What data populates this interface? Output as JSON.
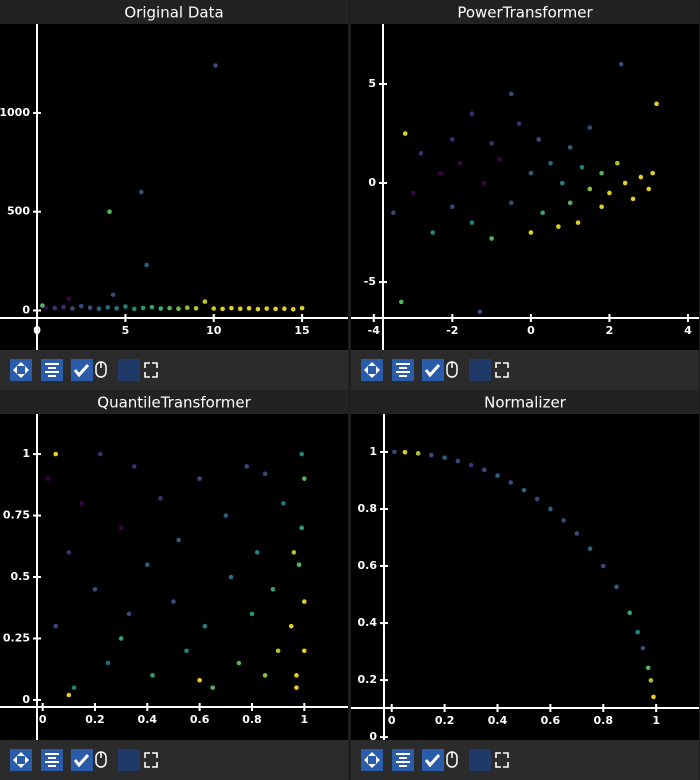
{
  "chart_data": [
    {
      "type": "scatter",
      "title": "Original Data",
      "x": [
        0.5,
        1,
        1.5,
        2,
        2.5,
        3,
        3.5,
        4,
        4.5,
        5,
        5.5,
        6,
        6.5,
        7,
        7.5,
        8,
        8.5,
        9,
        9.5,
        10,
        10.5,
        11,
        11.5,
        12,
        12.5,
        13,
        13.5,
        14,
        14.5,
        15,
        10.1,
        5.9,
        4.1,
        6.2,
        4.3,
        1.8,
        0.3
      ],
      "values": [
        15,
        12,
        18,
        10,
        22,
        14,
        9,
        16,
        11,
        20,
        8,
        13,
        17,
        10,
        12,
        9,
        14,
        11,
        45,
        10,
        8,
        12,
        9,
        11,
        7,
        10,
        8,
        9,
        6,
        12,
        1240,
        600,
        500,
        230,
        80,
        60,
        25
      ],
      "colors": [
        "#440154",
        "#46327e",
        "#46327e",
        "#3b528b",
        "#3b528b",
        "#365c8d",
        "#31688e",
        "#2c728e",
        "#26828e",
        "#21918c",
        "#1f9e89",
        "#22a884",
        "#35b779",
        "#44bf70",
        "#5ec962",
        "#7ad151",
        "#95d840",
        "#b5de2b",
        "#d2e21b",
        "#dde318",
        "#fde725",
        "#fde725",
        "#fde725",
        "#fde725",
        "#fde725",
        "#fde725",
        "#fde725",
        "#fde725",
        "#fde725",
        "#fde725",
        "#3b528b",
        "#3b528b",
        "#5ec962",
        "#31688e",
        "#3b528b",
        "#440154",
        "#5ec962"
      ],
      "xlim": [
        -2.1,
        17.6
      ],
      "ylim": [
        -200,
        1450
      ],
      "xticks": [
        0,
        5,
        10,
        15
      ],
      "yticks": [
        0,
        500,
        1000
      ]
    },
    {
      "type": "scatter",
      "title": "PowerTransformer",
      "x": [
        -3.5,
        -3.2,
        -3,
        -2.8,
        -2.5,
        -2.3,
        -2,
        -2,
        -1.8,
        -1.5,
        -1.5,
        -1.2,
        -1,
        -1,
        -0.8,
        -0.5,
        -0.5,
        -0.3,
        0,
        0,
        0.2,
        0.3,
        0.5,
        0.7,
        0.8,
        1,
        1,
        1.2,
        1.3,
        1.5,
        1.5,
        1.8,
        1.8,
        2,
        2.2,
        2.4,
        2.6,
        2.8,
        3,
        3.1,
        3.2,
        -3.3,
        -1.3,
        2.3
      ],
      "values": [
        -1.5,
        2.5,
        -0.5,
        1.5,
        -2.5,
        0.5,
        2.2,
        -1.2,
        1,
        3.5,
        -2,
        0,
        2,
        -2.8,
        1.2,
        4.5,
        -1,
        3,
        0.5,
        -2.5,
        2.2,
        -1.5,
        1,
        -2.2,
        0,
        1.8,
        -1,
        -2,
        0.8,
        -0.3,
        2.8,
        -1.2,
        0.5,
        -0.5,
        1,
        0,
        -0.8,
        0.3,
        -0.3,
        0.5,
        4,
        -6,
        -6.5,
        6
      ],
      "colors": [
        "#3b528b",
        "#fde725",
        "#440154",
        "#46327e",
        "#21918c",
        "#440154",
        "#46327e",
        "#3b528b",
        "#440154",
        "#46327e",
        "#21918c",
        "#440154",
        "#46327e",
        "#5ec962",
        "#440154",
        "#3b528b",
        "#3b528b",
        "#46327e",
        "#31688e",
        "#fde725",
        "#3b528b",
        "#35b779",
        "#2c728e",
        "#fde725",
        "#21918c",
        "#31688e",
        "#5ec962",
        "#fde725",
        "#21918c",
        "#95d840",
        "#3b528b",
        "#fde725",
        "#5ec962",
        "#fde725",
        "#b5de2b",
        "#fde725",
        "#fde725",
        "#fde725",
        "#fde725",
        "#fde725",
        "#fde725",
        "#5ec962",
        "#3b528b",
        "#3b528b"
      ],
      "xlim": [
        -4.58,
        4.28
      ],
      "ylim": [
        -8.43,
        8.03
      ],
      "xticks": [
        -4,
        -2,
        0,
        2,
        4
      ],
      "yticks": [
        -5,
        0,
        5
      ]
    },
    {
      "type": "scatter",
      "title": "QuantileTransformer",
      "x": [
        0.02,
        0.05,
        0.1,
        0.12,
        0.15,
        0.2,
        0.22,
        0.25,
        0.3,
        0.33,
        0.35,
        0.4,
        0.42,
        0.45,
        0.5,
        0.52,
        0.55,
        0.6,
        0.62,
        0.65,
        0.7,
        0.72,
        0.75,
        0.78,
        0.8,
        0.82,
        0.85,
        0.88,
        0.9,
        0.92,
        0.95,
        0.97,
        0.98,
        0.99,
        1,
        1,
        1,
        0.99,
        0.97,
        0.96,
        0.1,
        0.3,
        0.6,
        0.85,
        0.05
      ],
      "values": [
        0.9,
        0.3,
        0.6,
        0.05,
        0.8,
        0.45,
        1,
        0.15,
        0.7,
        0.35,
        0.95,
        0.55,
        0.1,
        0.82,
        0.4,
        0.65,
        0.2,
        0.9,
        0.3,
        0.05,
        0.75,
        0.5,
        0.15,
        0.95,
        0.35,
        0.6,
        0.1,
        0.45,
        0.2,
        0.8,
        0.3,
        0.1,
        0.55,
        0.7,
        0.4,
        0.2,
        0.9,
        1,
        0.05,
        0.6,
        0.02,
        0.25,
        0.08,
        0.92,
        1
      ],
      "colors": [
        "#440154",
        "#3b528b",
        "#46327e",
        "#21918c",
        "#440154",
        "#3b528b",
        "#46327e",
        "#2c728e",
        "#440154",
        "#3b528b",
        "#46327e",
        "#31688e",
        "#35b779",
        "#46327e",
        "#3b528b",
        "#31688e",
        "#21918c",
        "#3b528b",
        "#21918c",
        "#5ec962",
        "#31688e",
        "#26828e",
        "#5ec962",
        "#3b528b",
        "#22a884",
        "#21918c",
        "#95d840",
        "#35b779",
        "#b5de2b",
        "#26828e",
        "#fde725",
        "#fde725",
        "#5ec962",
        "#35b779",
        "#fde725",
        "#fde725",
        "#5ec962",
        "#21918c",
        "#fde725",
        "#b5de2b",
        "#fde725",
        "#35b779",
        "#fde725",
        "#3b528b",
        "#fde725"
      ],
      "xlim": [
        -0.163,
        1.167
      ],
      "ylim": [
        -0.163,
        1.163
      ],
      "xticks": [
        0,
        0.2,
        0.4,
        0.6,
        0.8,
        1
      ],
      "yticks": [
        0,
        0.25,
        0.5,
        0.75,
        1
      ]
    },
    {
      "type": "scatter",
      "title": "Normalizer",
      "x": [
        0.01,
        0.05,
        0.1,
        0.15,
        0.2,
        0.25,
        0.3,
        0.35,
        0.4,
        0.45,
        0.5,
        0.55,
        0.6,
        0.65,
        0.7,
        0.75,
        0.8,
        0.85,
        0.9,
        0.93,
        0.95,
        0.97,
        0.98,
        0.99
      ],
      "values": [
        1,
        0.999,
        0.995,
        0.989,
        0.98,
        0.968,
        0.954,
        0.937,
        0.917,
        0.893,
        0.866,
        0.835,
        0.8,
        0.76,
        0.714,
        0.661,
        0.6,
        0.527,
        0.436,
        0.368,
        0.312,
        0.243,
        0.199,
        0.141
      ],
      "colors": [
        "#3b528b",
        "#fde725",
        "#b5de2b",
        "#3b528b",
        "#31688e",
        "#3b528b",
        "#46327e",
        "#3b528b",
        "#31688e",
        "#3b528b",
        "#2c728e",
        "#3b528b",
        "#31688e",
        "#3b528b",
        "#3b528b",
        "#2c728e",
        "#3b528b",
        "#31688e",
        "#35b779",
        "#21918c",
        "#3b528b",
        "#5ec962",
        "#b5de2b",
        "#fde725"
      ],
      "xlim": [
        -0.154,
        1.162
      ],
      "ylim": [
        -0.01,
        1.133
      ],
      "xticks": [
        0,
        0.2,
        0.4,
        0.6,
        0.8,
        1
      ],
      "yticks": [
        0,
        0.2,
        0.4,
        0.6,
        0.8,
        1
      ]
    }
  ]
}
